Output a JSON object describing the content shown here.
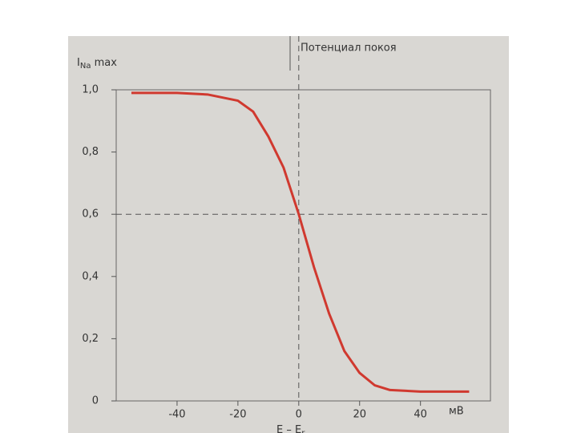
{
  "chart_data": {
    "type": "line",
    "annotation": "Потенциал покоя",
    "y_label": {
      "main": "I",
      "sub": "Na",
      "suffix": " max"
    },
    "x_label": {
      "main": "E – E",
      "sub": "r"
    },
    "x_unit": "мВ",
    "x": [
      -55,
      -40,
      -30,
      -20,
      -15,
      -10,
      -5,
      0,
      5,
      10,
      15,
      20,
      25,
      30,
      40,
      56
    ],
    "series": [
      {
        "color": "#d0392f",
        "values": [
          0.99,
          0.99,
          0.985,
          0.965,
          0.93,
          0.85,
          0.75,
          0.6,
          0.43,
          0.28,
          0.16,
          0.09,
          0.05,
          0.035,
          0.03,
          0.03
        ]
      }
    ],
    "xlim": [
      -60,
      63
    ],
    "ylim": [
      0,
      1
    ],
    "xticks": [
      -40,
      -20,
      0,
      20,
      40
    ],
    "yticks": [
      0,
      {
        "value": 0.2,
        "label": "0,2"
      },
      {
        "value": 0.4,
        "label": "0,4"
      },
      {
        "value": 0.6,
        "label": "0,6"
      },
      {
        "value": 0.8,
        "label": "0,8"
      },
      {
        "value": 1,
        "label": "1,0"
      }
    ],
    "vline": 0,
    "hline": 0.6
  }
}
